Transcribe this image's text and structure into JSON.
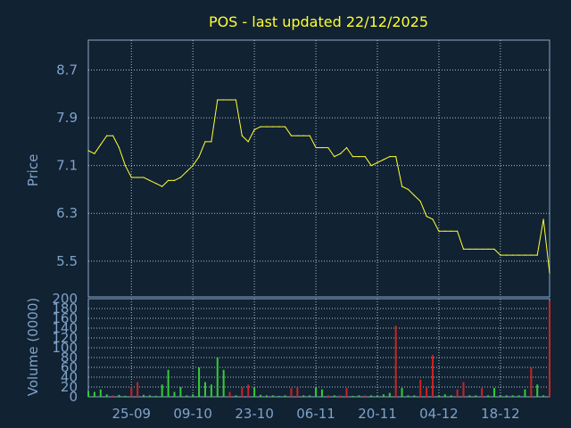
{
  "title": "POS - last updated 22/12/2025",
  "colors": {
    "background": "#112233",
    "axis_text": "#7fa3c8",
    "price_line": "#ffff33",
    "volume_up": "#33cc33",
    "volume_down": "#cc2222",
    "grid": "#bfcfdf",
    "frame": "#8aa8c8"
  },
  "chart_data": [
    {
      "type": "line",
      "ylabel": "Price",
      "ylim": [
        4.9,
        9.2
      ],
      "yticks": [
        5.5,
        6.3,
        7.1,
        7.9,
        8.7
      ],
      "ytick_labels": [
        "5.5",
        "6.3",
        "7.1",
        "7.9",
        "8.7"
      ],
      "xlim": [
        0,
        75
      ],
      "xticks": [
        7,
        17,
        27,
        37,
        47,
        57,
        67
      ],
      "xtick_labels": [
        "25-09",
        "09-10",
        "23-10",
        "06-11",
        "20-11",
        "04-12",
        "18-12"
      ],
      "grid": true,
      "series": [
        {
          "x": [
            0,
            1,
            2,
            3,
            4,
            5,
            6,
            7,
            8,
            9,
            10,
            11,
            12,
            13,
            14,
            15,
            16,
            17,
            18,
            19,
            20,
            21,
            22,
            23,
            24,
            25,
            26,
            27,
            28,
            29,
            30,
            31,
            32,
            33,
            34,
            35,
            36,
            37,
            38,
            39,
            40,
            41,
            42,
            43,
            44,
            45,
            46,
            47,
            48,
            49,
            50,
            51,
            52,
            53,
            54,
            55,
            56,
            57,
            58,
            59,
            60,
            61,
            62,
            63,
            64,
            65,
            66,
            67,
            68,
            69,
            70,
            71,
            72,
            73,
            74,
            75
          ],
          "values": [
            7.35,
            7.3,
            7.45,
            7.6,
            7.6,
            7.4,
            7.1,
            6.9,
            6.9,
            6.9,
            6.85,
            6.8,
            6.75,
            6.85,
            6.85,
            6.9,
            7.0,
            7.1,
            7.25,
            7.5,
            7.5,
            8.2,
            8.2,
            8.2,
            8.2,
            7.6,
            7.5,
            7.7,
            7.75,
            7.75,
            7.75,
            7.75,
            7.75,
            7.6,
            7.6,
            7.6,
            7.6,
            7.4,
            7.4,
            7.4,
            7.25,
            7.3,
            7.4,
            7.25,
            7.25,
            7.25,
            7.1,
            7.15,
            7.2,
            7.25,
            7.25,
            6.75,
            6.7,
            6.6,
            6.5,
            6.25,
            6.2,
            6.0,
            6.0,
            6.0,
            6.0,
            5.7,
            5.7,
            5.7,
            5.7,
            5.7,
            5.7,
            5.6,
            5.6,
            5.6,
            5.6,
            5.6,
            5.6,
            5.6,
            6.2,
            5.3
          ]
        }
      ]
    },
    {
      "type": "bar",
      "ylabel": "Volume (0000)",
      "ylim": [
        0,
        200
      ],
      "yticks": [
        0,
        20,
        40,
        60,
        80,
        100,
        120,
        140,
        160,
        180,
        200
      ],
      "ytick_labels": [
        "0",
        "20",
        "40",
        "60",
        "80",
        "100",
        "120",
        "140",
        "160",
        "180",
        "200"
      ],
      "grid": true,
      "series": [
        {
          "name": "",
          "x": [
            0,
            1,
            2,
            3,
            4,
            5,
            6,
            7,
            8,
            9,
            10,
            11,
            12,
            13,
            14,
            15,
            16,
            17,
            18,
            19,
            20,
            21,
            22,
            23,
            24,
            25,
            26,
            27,
            28,
            29,
            30,
            31,
            32,
            33,
            34,
            35,
            36,
            37,
            38,
            39,
            40,
            41,
            42,
            43,
            44,
            45,
            46,
            47,
            48,
            49,
            50,
            51,
            52,
            53,
            54,
            55,
            56,
            57,
            58,
            59,
            60,
            61,
            62,
            63,
            64,
            65,
            66,
            67,
            68,
            69,
            70,
            71,
            72,
            73,
            74,
            75
          ],
          "values": [
            12,
            10,
            15,
            5,
            3,
            4,
            2,
            20,
            30,
            4,
            3,
            2,
            25,
            55,
            10,
            20,
            3,
            5,
            60,
            30,
            25,
            80,
            55,
            10,
            3,
            20,
            25,
            20,
            4,
            3,
            3,
            2,
            3,
            18,
            20,
            3,
            3,
            20,
            15,
            3,
            3,
            3,
            18,
            2,
            3,
            3,
            3,
            2,
            5,
            8,
            145,
            18,
            3,
            3,
            35,
            20,
            85,
            2,
            5,
            3,
            15,
            30,
            3,
            3,
            18,
            3,
            18,
            3,
            3,
            3,
            3,
            15,
            60,
            25,
            3,
            195
          ],
          "direction": [
            "up",
            "up",
            "up",
            "up",
            "down",
            "up",
            "up",
            "down",
            "down",
            "up",
            "up",
            "up",
            "up",
            "up",
            "up",
            "up",
            "up",
            "up",
            "up",
            "up",
            "up",
            "up",
            "up",
            "down",
            "up",
            "down",
            "down",
            "up",
            "up",
            "up",
            "up",
            "up",
            "up",
            "down",
            "down",
            "up",
            "up",
            "up",
            "up",
            "down",
            "up",
            "down",
            "down",
            "up",
            "up",
            "down",
            "up",
            "up",
            "up",
            "up",
            "down",
            "up",
            "up",
            "up",
            "down",
            "down",
            "down",
            "up",
            "up",
            "up",
            "down",
            "down",
            "up",
            "up",
            "down",
            "up",
            "up",
            "up",
            "up",
            "up",
            "up",
            "up",
            "down",
            "up",
            "up",
            "down"
          ]
        }
      ]
    }
  ]
}
